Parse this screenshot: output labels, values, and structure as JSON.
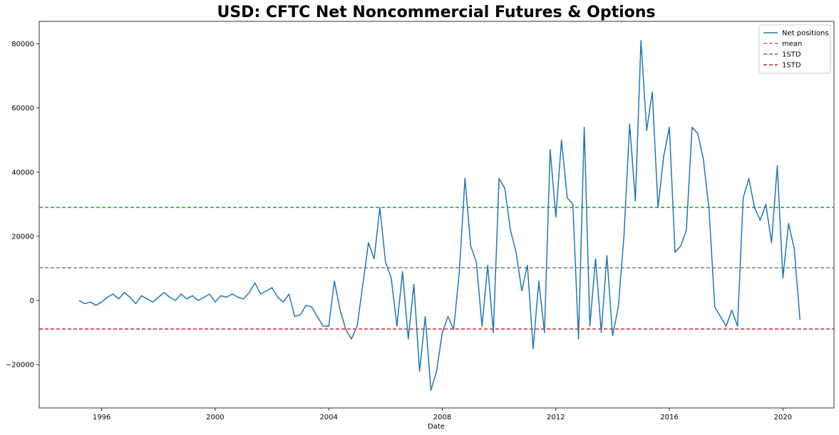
{
  "chart_data": {
    "type": "line",
    "title": "USD: CFTC Net Noncommercial Futures & Options",
    "xlabel": "Date",
    "ylabel": "",
    "xlim": [
      1993.8,
      2021.8
    ],
    "ylim": [
      -33500,
      87000
    ],
    "x_ticks": [
      1996,
      2000,
      2004,
      2008,
      2012,
      2016,
      2020
    ],
    "x_tick_labels": [
      "1996",
      "2000",
      "2004",
      "2008",
      "2012",
      "2016",
      "2020"
    ],
    "y_ticks": [
      -20000,
      0,
      20000,
      40000,
      60000,
      80000
    ],
    "y_tick_labels": [
      "−20000",
      "0",
      "20000",
      "40000",
      "60000",
      "80000"
    ],
    "grid": false,
    "legend_position": "top-right",
    "reference_lines": [
      {
        "name": "mean",
        "value": 10200,
        "color": "#7f7f7f"
      },
      {
        "name": "1STD",
        "value": 29000,
        "color": "#2ca02c"
      },
      {
        "name": "1STD",
        "value": -8900,
        "color": "#d62728"
      }
    ],
    "series": [
      {
        "name": "Net positions",
        "color": "#1f77b4",
        "x": [
          1995.2,
          1995.4,
          1995.6,
          1995.8,
          1996.0,
          1996.2,
          1996.4,
          1996.6,
          1996.8,
          1997.0,
          1997.2,
          1997.4,
          1997.6,
          1997.8,
          1998.0,
          1998.2,
          1998.4,
          1998.6,
          1998.8,
          1999.0,
          1999.2,
          1999.4,
          1999.6,
          1999.8,
          2000.0,
          2000.2,
          2000.4,
          2000.6,
          2000.8,
          2001.0,
          2001.2,
          2001.4,
          2001.6,
          2001.8,
          2002.0,
          2002.2,
          2002.4,
          2002.6,
          2002.8,
          2003.0,
          2003.2,
          2003.4,
          2003.6,
          2003.8,
          2004.0,
          2004.2,
          2004.4,
          2004.6,
          2004.8,
          2005.0,
          2005.2,
          2005.4,
          2005.6,
          2005.8,
          2006.0,
          2006.2,
          2006.4,
          2006.6,
          2006.8,
          2007.0,
          2007.2,
          2007.4,
          2007.6,
          2007.8,
          2008.0,
          2008.2,
          2008.4,
          2008.6,
          2008.8,
          2009.0,
          2009.2,
          2009.4,
          2009.6,
          2009.8,
          2010.0,
          2010.2,
          2010.4,
          2010.6,
          2010.8,
          2011.0,
          2011.2,
          2011.4,
          2011.6,
          2011.8,
          2012.0,
          2012.2,
          2012.4,
          2012.6,
          2012.8,
          2013.0,
          2013.2,
          2013.4,
          2013.6,
          2013.8,
          2014.0,
          2014.2,
          2014.4,
          2014.6,
          2014.8,
          2015.0,
          2015.2,
          2015.4,
          2015.6,
          2015.8,
          2016.0,
          2016.2,
          2016.4,
          2016.6,
          2016.8,
          2017.0,
          2017.2,
          2017.4,
          2017.6,
          2017.8,
          2018.0,
          2018.2,
          2018.4,
          2018.6,
          2018.8,
          2019.0,
          2019.2,
          2019.4,
          2019.6,
          2019.8,
          2020.0,
          2020.2,
          2020.4,
          2020.6
        ],
        "values": [
          0,
          -1000,
          -500,
          -1500,
          -500,
          1000,
          2000,
          500,
          2500,
          1000,
          -1000,
          1500,
          500,
          -500,
          1000,
          2500,
          1000,
          0,
          2000,
          500,
          1500,
          0,
          1000,
          2000,
          -500,
          1500,
          1000,
          2000,
          1000,
          500,
          2500,
          5500,
          2000,
          3000,
          4000,
          1000,
          -500,
          2000,
          -5000,
          -4500,
          -1500,
          -2000,
          -5000,
          -8000,
          -8000,
          6000,
          -3000,
          -9000,
          -12000,
          -8000,
          5000,
          18000,
          13000,
          29000,
          12000,
          7000,
          -8000,
          9000,
          -12000,
          5000,
          -22000,
          -5000,
          -28000,
          -22000,
          -10000,
          -5000,
          -9000,
          9000,
          38000,
          17000,
          12000,
          -8000,
          11000,
          -10000,
          38000,
          35000,
          22000,
          15000,
          3000,
          11000,
          -15000,
          6000,
          -10000,
          47000,
          26000,
          50000,
          32000,
          30000,
          -12000,
          54000,
          -8000,
          13000,
          -10000,
          14000,
          -11000,
          -2000,
          20000,
          55000,
          31000,
          81000,
          53000,
          65000,
          29000,
          45000,
          54000,
          15000,
          17000,
          22000,
          54000,
          52000,
          44000,
          28000,
          -2000,
          -5000,
          -8000,
          -3000,
          -8000,
          32000,
          38000,
          29000,
          25000,
          30000,
          18000,
          42000,
          7000,
          24000,
          16000,
          -6000
        ]
      }
    ]
  }
}
